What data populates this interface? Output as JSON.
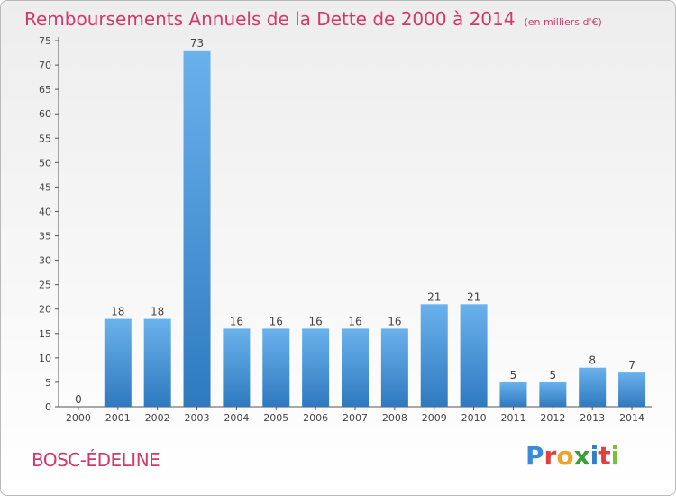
{
  "title": "Remboursements Annuels de la Dette de 2000 à 2014",
  "unit_note": "(en milliers d'€)",
  "commune": "BOSC-ÉDELINE",
  "logo": {
    "letters": [
      "P",
      "r",
      "o",
      "x",
      "i",
      "t",
      "i"
    ],
    "colors": [
      "#3a8ad8",
      "#e0413f",
      "#f2a22b",
      "#3c9d3b",
      "#2e7fd0",
      "#e0413f",
      "#7bbf3a"
    ]
  },
  "colors": {
    "bar": "#4a97d8",
    "bar_light": "#6ab2ec",
    "bar_dark": "#2f79bf",
    "accent": "#d2386c"
  },
  "chart_data": {
    "type": "bar",
    "title": "Remboursements Annuels de la Dette de 2000 à 2014",
    "xlabel": "",
    "ylabel": "en milliers d'€",
    "categories": [
      "2000",
      "2001",
      "2002",
      "2003",
      "2004",
      "2005",
      "2006",
      "2007",
      "2008",
      "2009",
      "2010",
      "2011",
      "2012",
      "2013",
      "2014"
    ],
    "values": [
      0,
      18,
      18,
      73,
      16,
      16,
      16,
      16,
      16,
      21,
      21,
      5,
      5,
      8,
      7
    ],
    "labels": [
      "0",
      "18",
      "18",
      "73",
      "16",
      "16",
      "16",
      "16",
      "16",
      "21",
      "21",
      "5",
      "5",
      "8",
      "7"
    ],
    "ylim": [
      0,
      75
    ],
    "yticks": [
      0,
      5,
      10,
      15,
      20,
      25,
      30,
      35,
      40,
      45,
      50,
      55,
      60,
      65,
      70,
      75
    ],
    "grid": false
  }
}
